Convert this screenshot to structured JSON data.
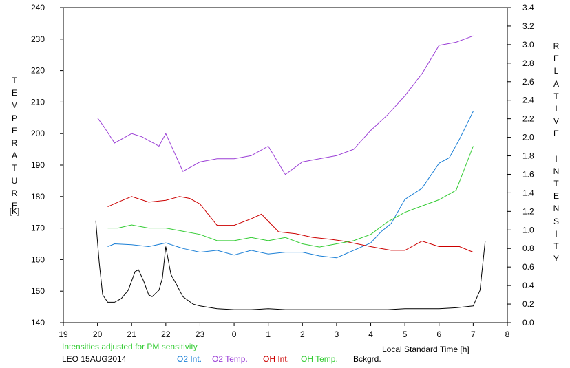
{
  "chart_data": {
    "type": "line",
    "y_left_label": "TEMPERATURE",
    "y_left_unit": "[K]",
    "y_right_label": "RELATIVE INTENSITY",
    "xlabel": "Local Standard Time [h]",
    "note": "Intensities adjusted for PM sensitivity",
    "station_date": "LEO 15AUG2014",
    "x_ticks": [
      "19",
      "20",
      "21",
      "22",
      "23",
      "0",
      "1",
      "2",
      "3",
      "4",
      "5",
      "6",
      "7",
      "8"
    ],
    "y_left_ticks": [
      140,
      150,
      160,
      170,
      180,
      190,
      200,
      210,
      220,
      230,
      240
    ],
    "y_left_range": [
      140,
      240
    ],
    "y_right_ticks": [
      "0.0",
      "0.2",
      "0.4",
      "0.6",
      "0.8",
      "1.0",
      "1.2",
      "1.4",
      "1.6",
      "1.8",
      "2.0",
      "2.2",
      "2.4",
      "2.6",
      "2.8",
      "3.0",
      "3.2",
      "3.4"
    ],
    "y_right_range": [
      0.0,
      3.4
    ],
    "x_range_hours": [
      19,
      32
    ],
    "grid": false,
    "series": [
      {
        "name": "O2 Int.",
        "axis": "right",
        "color": "#1a7fd6",
        "x": [
          20.3,
          20.5,
          21.0,
          21.5,
          22.0,
          22.5,
          23.0,
          23.5,
          24.0,
          24.5,
          25.0,
          25.5,
          26.0,
          26.5,
          27.0,
          27.5,
          28.0,
          28.3,
          28.6,
          29.0,
          29.5,
          30.0,
          30.3,
          30.6,
          31.0
        ],
        "values": [
          0.82,
          0.85,
          0.84,
          0.82,
          0.86,
          0.8,
          0.76,
          0.78,
          0.73,
          0.78,
          0.74,
          0.76,
          0.76,
          0.72,
          0.7,
          0.78,
          0.86,
          0.98,
          1.07,
          1.33,
          1.45,
          1.72,
          1.78,
          1.98,
          2.28
        ]
      },
      {
        "name": "O2 Temp.",
        "axis": "left",
        "color": "#9b3fd6",
        "x": [
          20.0,
          20.2,
          20.5,
          21.0,
          21.3,
          21.8,
          22.0,
          22.5,
          23.0,
          23.5,
          24.0,
          24.5,
          25.0,
          25.5,
          26.0,
          26.5,
          27.0,
          27.5,
          28.0,
          28.5,
          29.0,
          29.5,
          30.0,
          30.5,
          31.0
        ],
        "values": [
          205,
          202,
          197,
          200,
          199,
          196,
          200,
          188,
          191,
          192,
          192,
          193,
          196,
          187,
          191,
          192,
          193,
          195,
          201,
          206,
          212,
          219,
          228,
          229,
          231
        ]
      },
      {
        "name": "OH Int.",
        "axis": "right",
        "color": "#cc0000",
        "x": [
          20.3,
          20.6,
          21.0,
          21.5,
          22.0,
          22.4,
          22.7,
          23.0,
          23.5,
          24.0,
          24.5,
          24.8,
          25.3,
          25.8,
          26.3,
          26.8,
          27.2,
          27.6,
          28.0,
          28.3,
          28.6,
          29.0,
          29.5,
          30.0,
          30.6,
          31.0
        ],
        "values": [
          1.25,
          1.3,
          1.36,
          1.3,
          1.32,
          1.36,
          1.34,
          1.28,
          1.05,
          1.05,
          1.12,
          1.17,
          0.98,
          0.96,
          0.92,
          0.9,
          0.88,
          0.85,
          0.82,
          0.8,
          0.78,
          0.78,
          0.88,
          0.82,
          0.82,
          0.76
        ]
      },
      {
        "name": "OH Temp.",
        "axis": "left",
        "color": "#33cc33",
        "x": [
          20.3,
          20.6,
          21.0,
          21.5,
          22.0,
          22.5,
          23.0,
          23.5,
          24.0,
          24.5,
          25.0,
          25.5,
          26.0,
          26.5,
          27.0,
          27.5,
          28.0,
          28.5,
          29.0,
          29.5,
          30.0,
          30.5,
          31.0
        ],
        "values": [
          170,
          170,
          171,
          170,
          170,
          169,
          168,
          166,
          166,
          167,
          166,
          167,
          165,
          164,
          165,
          166,
          168,
          172,
          175,
          177,
          179,
          182,
          196
        ]
      },
      {
        "name": "Bckgrd.",
        "axis": "right",
        "color": "#000000",
        "x": [
          19.95,
          20.05,
          20.15,
          20.3,
          20.5,
          20.7,
          20.9,
          21.1,
          21.2,
          21.35,
          21.5,
          21.6,
          21.8,
          21.9,
          22.0,
          22.15,
          22.3,
          22.5,
          22.8,
          23.0,
          23.5,
          24.0,
          24.5,
          25.0,
          25.5,
          26.0,
          26.5,
          27.0,
          27.5,
          28.0,
          28.5,
          29.0,
          29.5,
          30.0,
          30.5,
          31.0,
          31.2,
          31.35
        ],
        "values": [
          1.1,
          0.65,
          0.3,
          0.22,
          0.22,
          0.26,
          0.35,
          0.55,
          0.57,
          0.45,
          0.3,
          0.28,
          0.35,
          0.48,
          0.82,
          0.52,
          0.42,
          0.28,
          0.2,
          0.18,
          0.15,
          0.14,
          0.14,
          0.15,
          0.14,
          0.14,
          0.14,
          0.14,
          0.14,
          0.14,
          0.14,
          0.15,
          0.15,
          0.15,
          0.16,
          0.18,
          0.35,
          0.88
        ]
      }
    ]
  },
  "legend": {
    "o2_int": "O2 Int.",
    "o2_temp": "O2 Temp.",
    "oh_int": "OH Int.",
    "oh_temp": "OH Temp.",
    "bckgrd": "Bckgrd."
  },
  "colors": {
    "o2_int": "#1a7fd6",
    "o2_temp": "#9b3fd6",
    "oh_int": "#cc0000",
    "oh_temp": "#33cc33",
    "bckgrd": "#000000",
    "note": "#33cc33"
  }
}
